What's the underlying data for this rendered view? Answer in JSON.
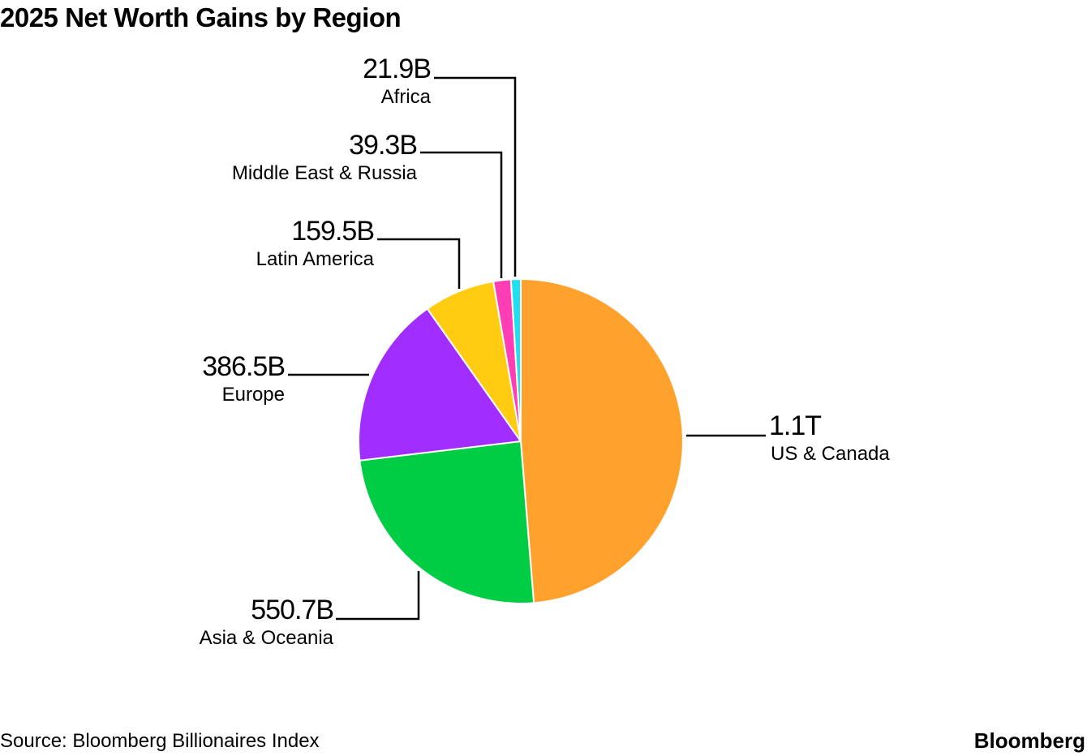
{
  "chart_data": {
    "type": "pie",
    "title": "2025 Net Worth Gains by Region",
    "source": "Source: Bloomberg Billionaires Index",
    "slices": [
      {
        "name": "US & Canada",
        "label": "1.1T",
        "value": 1100,
        "color": "#ffa22d"
      },
      {
        "name": "Asia & Oceania",
        "label": "550.7B",
        "value": 550.7,
        "color": "#00cc44"
      },
      {
        "name": "Europe",
        "label": "386.5B",
        "value": 386.5,
        "color": "#a12dff"
      },
      {
        "name": "Latin America",
        "label": "159.5B",
        "value": 159.5,
        "color": "#ffcc11"
      },
      {
        "name": "Middle East & Russia",
        "label": "39.3B",
        "value": 39.3,
        "color": "#ff3eb5"
      },
      {
        "name": "Africa",
        "label": "21.9B",
        "value": 21.9,
        "color": "#1ee0f0"
      }
    ]
  },
  "brand": "Bloomberg"
}
